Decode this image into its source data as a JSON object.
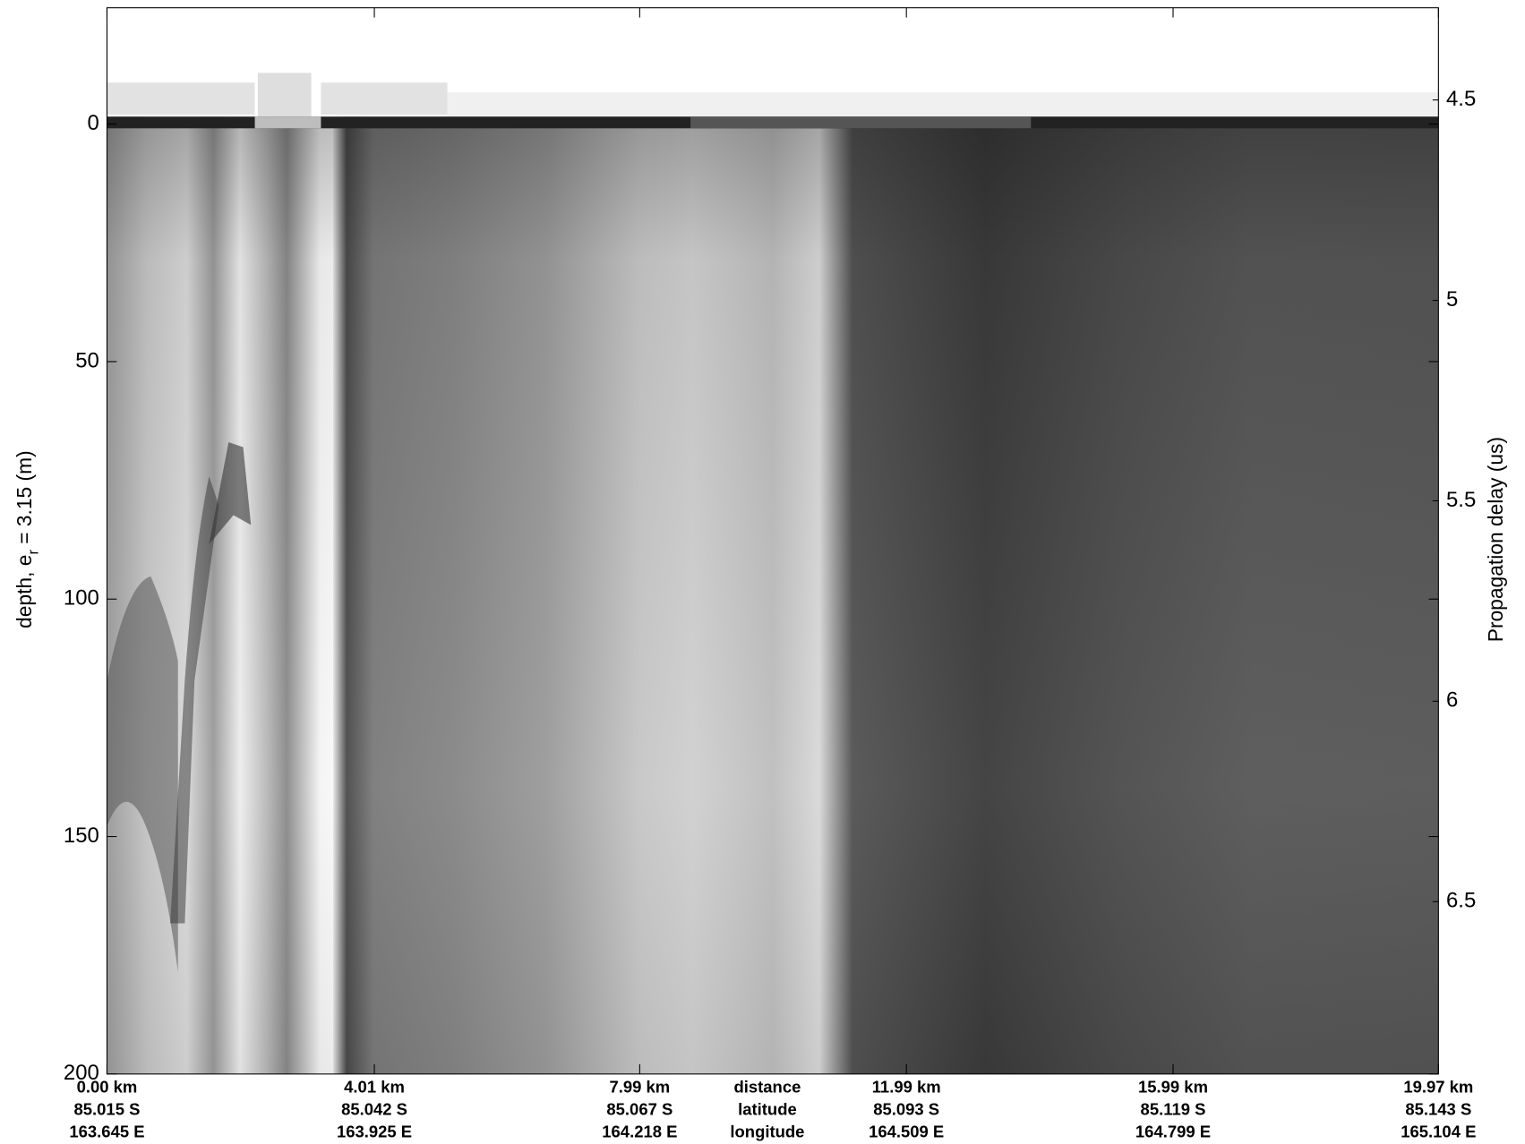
{
  "chart_data": {
    "type": "radargram",
    "ylabel": [
      "depth, e",
      "r",
      " = 3.15 (m)"
    ],
    "y2label": "Propagation delay (us)",
    "y_inverted": true,
    "ylim": [
      -24.5,
      200
    ],
    "yticks": [
      0,
      50,
      100,
      150,
      200
    ],
    "y2lim": [
      4.27,
      6.93
    ],
    "y2ticks": [
      4.5,
      5,
      5.5,
      6,
      6.5
    ],
    "xlim": [
      0,
      19.97
    ],
    "xticks": [
      {
        "value": 0,
        "label": "0.00 km"
      },
      {
        "value": 4.01,
        "label": "4.01 km"
      },
      {
        "value": 7.99,
        "label": "7.99 km"
      },
      {
        "value": 11.99,
        "label": "11.99 km"
      },
      {
        "value": 15.99,
        "label": "15.99 km"
      },
      {
        "value": 19.97,
        "label": "19.97 km"
      }
    ],
    "latitude_labels": [
      "85.015 S",
      "85.042 S",
      "85.067 S",
      "85.093 S",
      "85.119 S",
      "85.143 S"
    ],
    "longitude_labels": [
      "163.645 E",
      "163.925 E",
      "164.218 E",
      "164.509 E",
      "164.799 E",
      "165.104 E"
    ],
    "x_row_titles": [
      "distance",
      "latitude",
      "longitude"
    ]
  }
}
